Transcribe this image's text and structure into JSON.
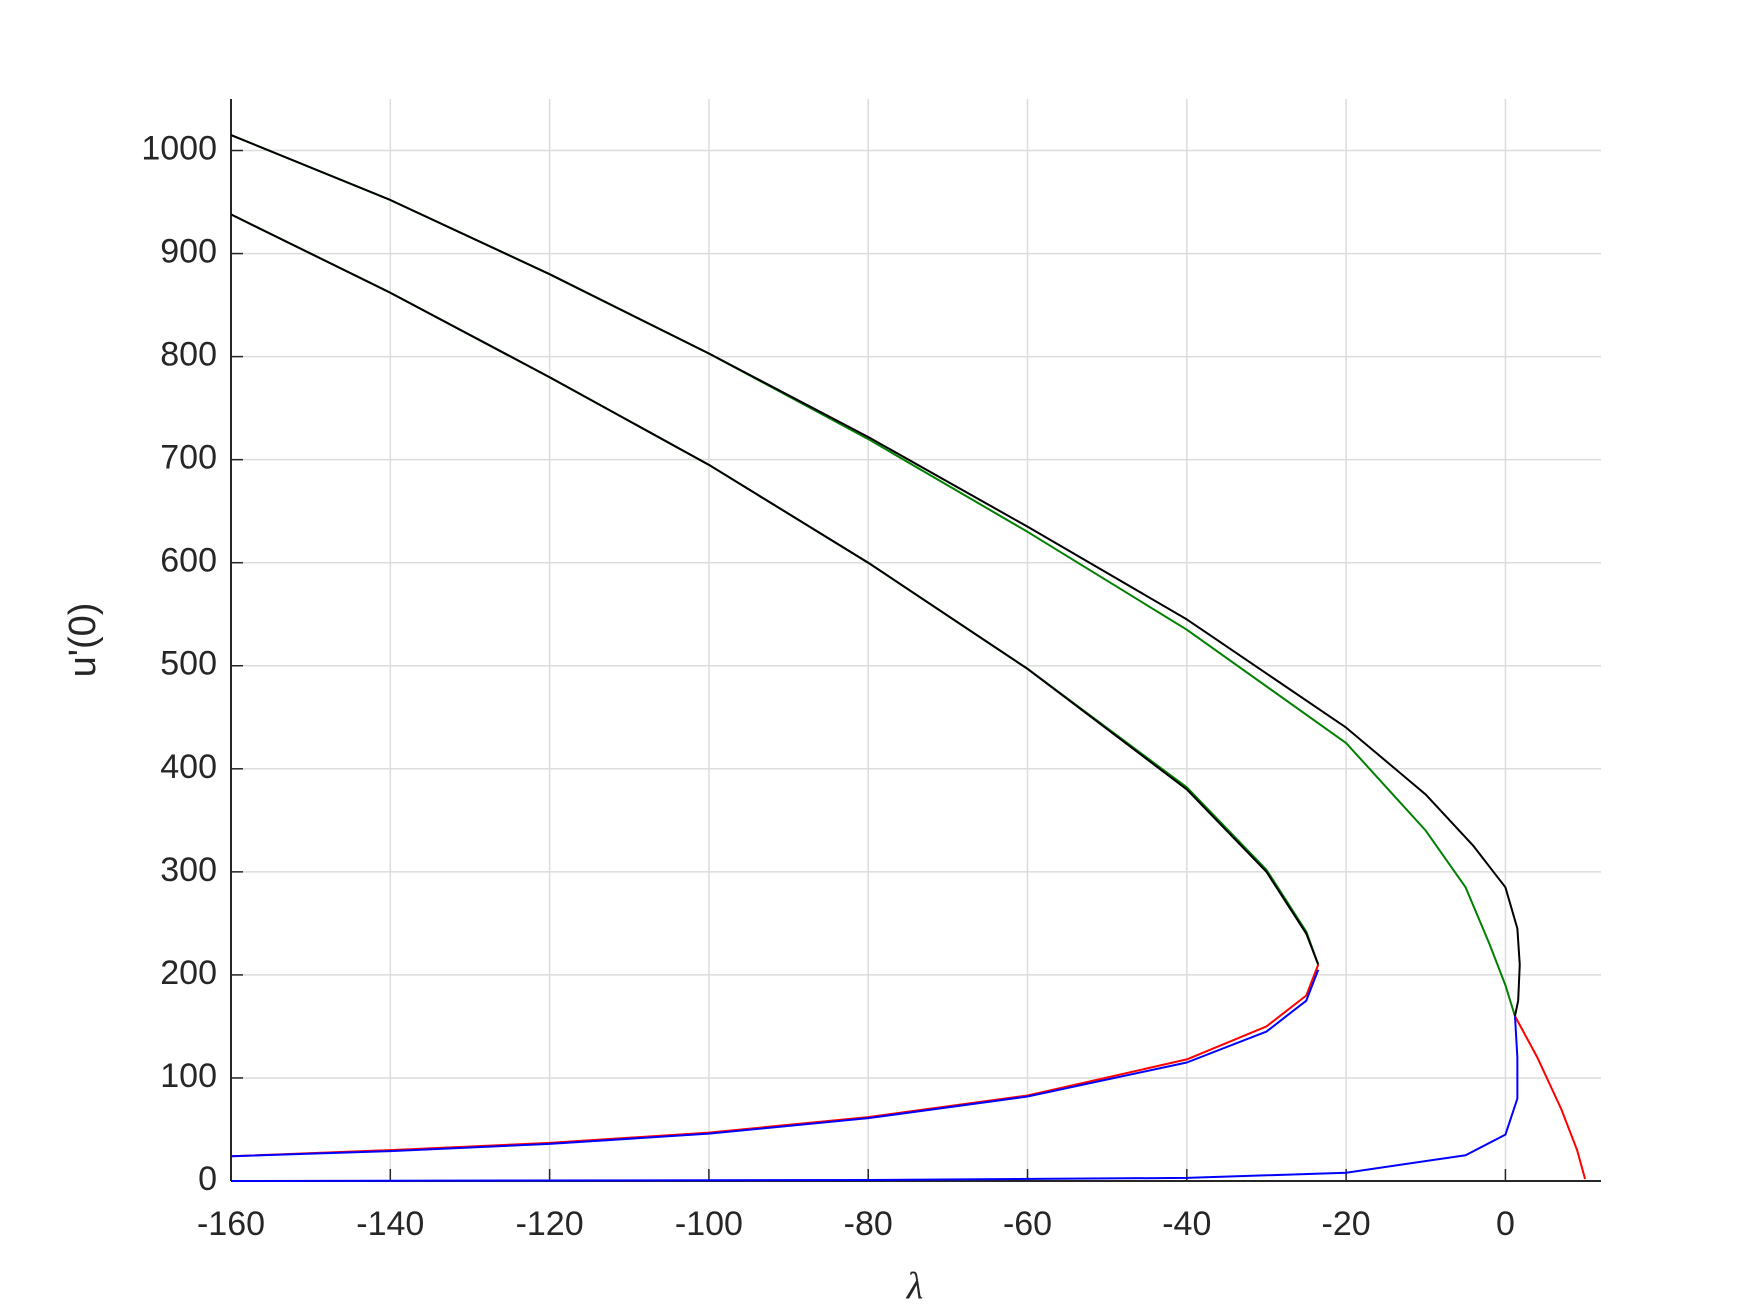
{
  "chart_data": {
    "type": "line",
    "xlabel": "λ",
    "ylabel": "u'(0)",
    "xlim": [
      -160,
      12
    ],
    "ylim": [
      0,
      1050
    ],
    "xticks": [
      -160,
      -140,
      -120,
      -100,
      -80,
      -60,
      -40,
      -20,
      0
    ],
    "yticks": [
      0,
      100,
      200,
      300,
      400,
      500,
      600,
      700,
      800,
      900,
      1000
    ],
    "grid": true,
    "series": [
      {
        "color": "#008000",
        "x": [
          -160,
          -140,
          -120,
          -100,
          -80,
          -60,
          -40,
          -20,
          -10,
          -5,
          -2,
          0,
          1.2
        ],
        "y": [
          1015,
          952,
          880,
          803,
          720,
          630,
          535,
          425,
          340,
          285,
          230,
          190,
          160
        ]
      },
      {
        "color": "#000000",
        "x": [
          -160,
          -140,
          -120,
          -100,
          -80,
          -60,
          -40,
          -20,
          -10,
          -4,
          0,
          1.5,
          1.8,
          1.6,
          1.2
        ],
        "y": [
          1015,
          952,
          880,
          803,
          722,
          635,
          545,
          440,
          375,
          325,
          285,
          245,
          210,
          175,
          160
        ]
      },
      {
        "color": "#008000",
        "x": [
          -160,
          -140,
          -120,
          -100,
          -80,
          -60,
          -40,
          -30,
          -25,
          -23.5
        ],
        "y": [
          938,
          862,
          780,
          695,
          600,
          497,
          382,
          302,
          242,
          210
        ]
      },
      {
        "color": "#000000",
        "x": [
          -160,
          -140,
          -120,
          -100,
          -80,
          -60,
          -40,
          -30,
          -25,
          -23.5
        ],
        "y": [
          938,
          862,
          780,
          695,
          600,
          497,
          380,
          300,
          240,
          210
        ]
      },
      {
        "color": "#ff0000",
        "x": [
          -23.5,
          -25,
          -30,
          -40,
          -60,
          -80,
          -100,
          -120,
          -140,
          -160
        ],
        "y": [
          210,
          180,
          150,
          118,
          83,
          62,
          47,
          37,
          30,
          24
        ]
      },
      {
        "color": "#0000ff",
        "x": [
          -23.5,
          -25,
          -30,
          -40,
          -60,
          -80,
          -100,
          -120,
          -140,
          -160
        ],
        "y": [
          205,
          175,
          145,
          115,
          82,
          61,
          46,
          36,
          29,
          24
        ]
      },
      {
        "color": "#ff0000",
        "x": [
          1.2,
          4,
          7,
          9,
          10
        ],
        "y": [
          160,
          120,
          70,
          30,
          2
        ]
      },
      {
        "color": "#0000ff",
        "x": [
          1.2,
          1.5,
          1.5,
          0,
          -5,
          -20,
          -40,
          -80,
          -160
        ],
        "y": [
          160,
          120,
          80,
          45,
          25,
          8,
          3,
          1,
          0
        ]
      }
    ]
  }
}
